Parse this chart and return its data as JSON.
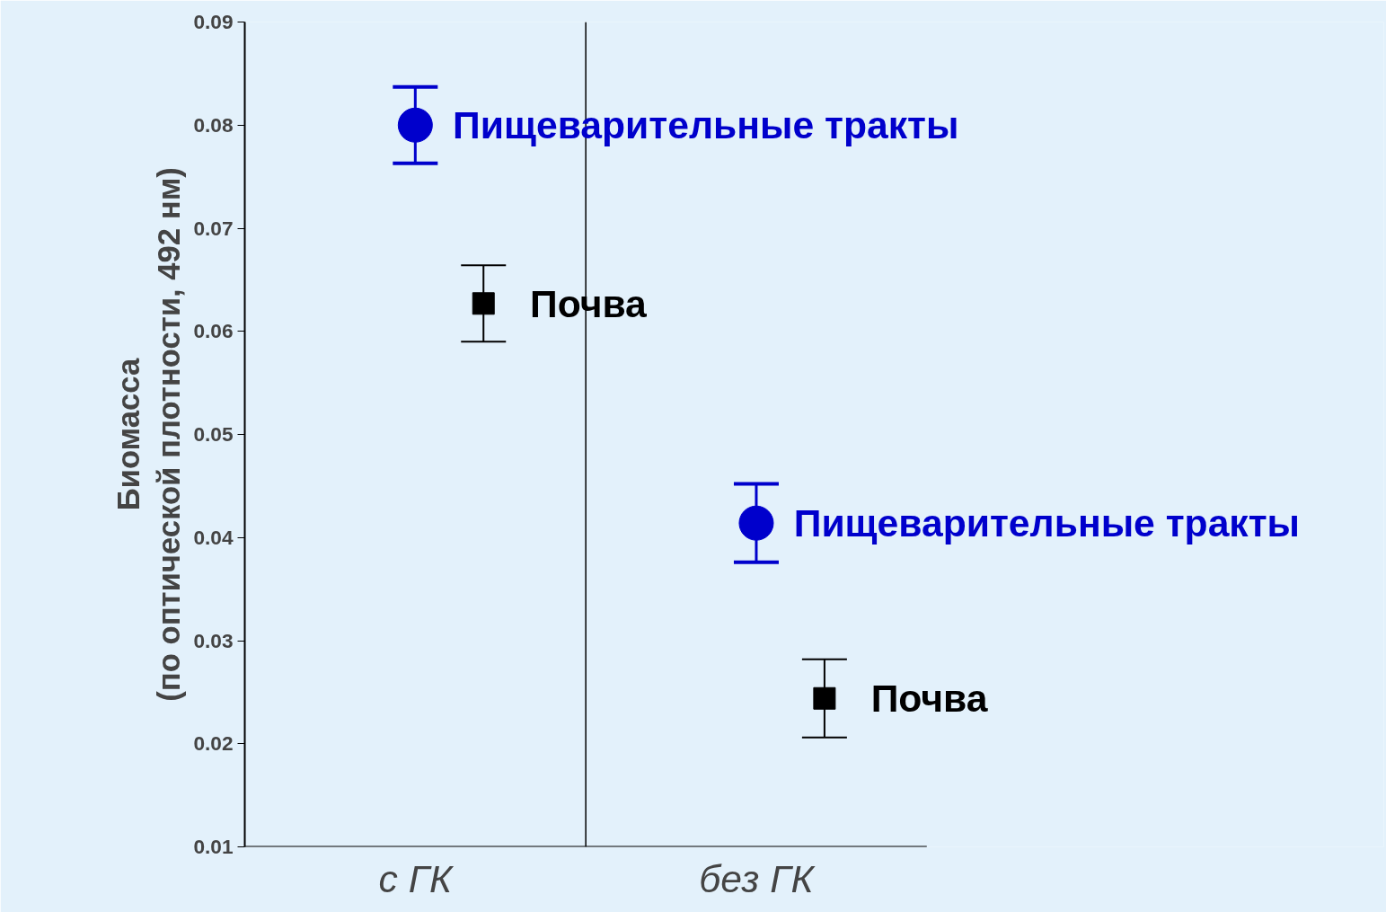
{
  "chart_data": {
    "type": "scatter",
    "ylabel": "Биомасса\n(по оптической плотности, 492 нм)",
    "categories": [
      "с ГК",
      "без ГК"
    ],
    "series": [
      {
        "name": "Пищеварительные тракты",
        "color": "#0000cc",
        "marker": "circle",
        "values": [
          0.08,
          0.0414
        ],
        "errors": [
          0.0037,
          0.0038
        ]
      },
      {
        "name": "Почва",
        "color": "#000000",
        "marker": "square",
        "values": [
          0.0627,
          0.0244
        ],
        "errors": [
          0.0037,
          0.0038
        ]
      }
    ],
    "ylim": [
      0.01,
      0.09
    ],
    "yticks": [
      0.01,
      0.02,
      0.03,
      0.04,
      0.05,
      0.06,
      0.07,
      0.08,
      0.09
    ],
    "grid": "x"
  }
}
